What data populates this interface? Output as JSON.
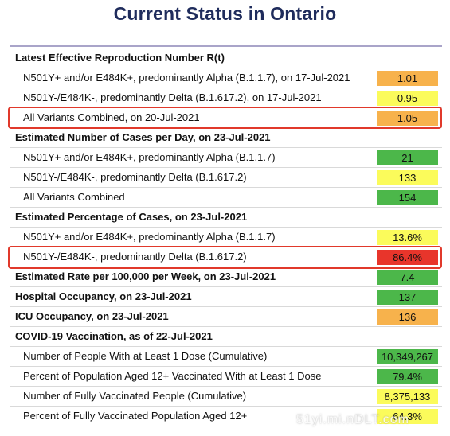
{
  "title": "Current Status in Ontario",
  "rows": [
    {
      "label": "Latest Effective Reproduction Number R(t)",
      "value": null
    },
    {
      "label": "N501Y+ and/or E484K+, predominantly Alpha (B.1.1.7), on 17-Jul-2021",
      "value": "1.01"
    },
    {
      "label": "N501Y-/E484K-, predominantly Delta (B.1.617.2), on 17-Jul-2021",
      "value": "0.95"
    },
    {
      "label": "All Variants Combined, on 20-Jul-2021",
      "value": "1.05"
    },
    {
      "label": "Estimated Number of Cases per Day, on 23-Jul-2021",
      "value": null
    },
    {
      "label": "N501Y+ and/or E484K+, predominantly Alpha (B.1.1.7)",
      "value": "21"
    },
    {
      "label": "N501Y-/E484K-, predominantly Delta (B.1.617.2)",
      "value": "133"
    },
    {
      "label": "All Variants Combined",
      "value": "154"
    },
    {
      "label": "Estimated Percentage of Cases, on 23-Jul-2021",
      "value": null
    },
    {
      "label": "N501Y+ and/or E484K+, predominantly Alpha (B.1.1.7)",
      "value": "13.6%"
    },
    {
      "label": "N501Y-/E484K-, predominantly Delta (B.1.617.2)",
      "value": "86.4%"
    },
    {
      "label": "Estimated Rate per 100,000 per Week, on 23-Jul-2021",
      "value": "7.4"
    },
    {
      "label": "Hospital Occupancy, on 23-Jul-2021",
      "value": "137"
    },
    {
      "label": "ICU Occupancy, on 23-Jul-2021",
      "value": "136"
    },
    {
      "label": "COVID-19 Vaccination, as of 22-Jul-2021",
      "value": null
    },
    {
      "label": "Number of People With at Least 1 Dose (Cumulative)",
      "value": "10,349,267"
    },
    {
      "label": "Percent of Population Aged 12+ Vaccinated With at Least 1 Dose",
      "value": "79.4%"
    },
    {
      "label": "Number of Fully Vaccinated People (Cumulative)",
      "value": "8,375,133"
    },
    {
      "label": "Percent of Fully Vaccinated Population Aged 12+",
      "value": "64.3%"
    }
  ],
  "colors": {
    "orange": "#f7b24c",
    "yellow": "#fbfb5b",
    "green": "#4cb74a",
    "red": "#e8352b",
    "highlight_border": "#e1392b",
    "title": "#1f2c5c"
  },
  "watermark": "51yi.mi.nDLT.com"
}
